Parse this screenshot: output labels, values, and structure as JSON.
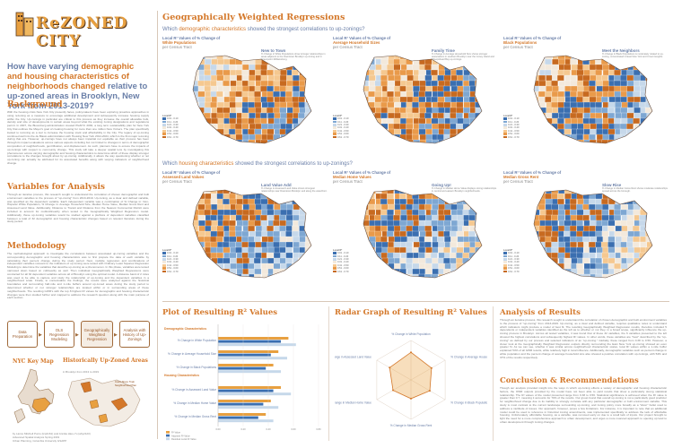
{
  "logo": {
    "text": "ReZONED CITY",
    "subtitle": ""
  },
  "title": {
    "prefix": "How have varying",
    "highlight": "demographic and housing characteristics of neighborhoods changed",
    "suffix": "relative to up-zoned areas in Brooklyn, New York from 2013-2019?"
  },
  "sections": {
    "background": {
      "heading": "Background",
      "text": "With the housing crisis New York City presently faces, policymakers have been exploring proactive approaches in using rezoning as a measure to encourage additional development and subsequently increase housing supply within the City. Up-zonings in particular are critical to this process as they increase the overall allowable bulk, density and size of developments in certain areas beyond what the existing zoning designations and regulations permit. In 2007, the Bloomberg administration created PlaNYC 2030, a long term sustainability plan for New York City that outlines the Mayor's goal of creating housing for more than one million New Yorkers. The plan specifically looked to rezoning as a tool to increase the housing stock and affordability in the City. The legacy of up-zoning continued well into the de Blasio administration with Housing New York 2014-2024, which is the first major rezoning during that era. However, up-zonings have not always been impartial nor equitable as their process has been through its impact evaluations across various aspects including but not limited to changes in terms of demographic composition of neighborhoods, gentrification, and displacement. As such, planners have to ensure the impacts of up-zonings with respect to community change. This study will take a deeper spatial lens by investigating this phenomenon across varying demographic and housing characteristics to determine which of these display stronger correlations to the changes brought about by up-zoning. Additionally, it allows the way questioning whether or not up-zoning can actually be attributed for its associated benefits along with varying indicators of neighborhood change."
    },
    "variables": {
      "heading": "Variables for Analysis",
      "text": "Through an iterative process, this research sought to understand the correlation of chosen demographic and built environment variables to the process of \"up-zoning\" from 2013-2019. Up-zoning, as a clear and defined variable, was specified as the dependent variable. Each independent variable was a combination of % Change in: Non-Hispanic White Population, % Change in: Average Household Size, Median Home Value, Median Gross Rent and Assessed Land Value. Additionally, Distance to Transit and Distance from the Nearest Commercial District were included to account for multicollinearity when tested in the Geographically Weighted Regression model. Additionally, these up-zoning variables would be studied against a plethora of dependent variables classified between a total of 32 demographic and housing characteristic changes based on relevant literature during the study period."
    },
    "methodology": {
      "heading": "Methodology",
      "text": "The methodological approach to investigate the correlations between associated up-zoning variables and the corresponding demographic and housing characteristics was to first prepare the data of each variable by calculating their percent change during the study period. Next, multiple regression and combinations of independent variables relevant to the indicators of up-zoning were tested with Ordinary Least Squares Regression Modeling to determine the variables that describe up-zoning as a phenomenon. In this phase, variables were tested narrowed down based on collinearity as well. Then individual Geographically Weighted Regressions were conducted for all 32 dependent variables across all of Brooklyn using the optimal model. A distance band of 2 miles was used to be able to capture and study the relationship of up-zoning and the dependent variables in a neighborhood scale. Finally, to contextualize the findings, the results were analyzed against the historical boundaries and surrounding half-mile and 1-mile buffers around up-zoned areas during the study period to determined whether or not stronger relationships are located within or in surrounding areas of these neighborhoods. The resulting GWR's with the top 8 highest R² values for demographic and housing characteristic changes were then studied further and mapped to address the research question along with the main purpose of each section."
    }
  },
  "flow_steps": [
    "Data Preparation",
    "OLS Regression Modeling",
    "Geographically Weighted Regression",
    "Analysis with History of Up-Zonings"
  ],
  "nyc_key_map": {
    "heading": "NYC Key Map"
  },
  "historical_map": {
    "heading": "Historically Up-Zoned Areas",
    "subtitle": "in Brooklyn from 2013 to 2019",
    "label": "Court Shore Train Neighborhood Plan"
  },
  "credits": {
    "line1": "by Lance Mitchell Purcu (lcp2161) and Annika Hieu-Yu (ahy2123)",
    "line2": "Advanced Spatial Analysis Spring 2019",
    "line3": "Urban Planning, Columbia University GSAPP"
  },
  "gwr": {
    "heading": "Geographically Weighted Regressions",
    "demo_question": {
      "prefix": "Which",
      "highlight": "demographic characteristics",
      "suffix": "showed the strongest correlations to up-zonings?"
    },
    "housing_question": {
      "prefix": "Which",
      "highlight": "housing characteristics",
      "suffix": "showed the strongest correlations to up-zonings?"
    },
    "demo_maps": [
      {
        "title": "Local R² Values of % Change of",
        "hl": "White Populations",
        "sub": "per Census Tract",
        "note_h": "New to Town",
        "note": "% Change in White Populations show stronger relationships in areas adjacent to the Downtown Brooklyn up-zoning and in Greenpoint-Williamsburg."
      },
      {
        "title": "Local R² Values of % Change of",
        "hl": "Average Household Sizes",
        "sub": "per Census Tract",
        "note_h": "Family Time",
        "note": "% Change in Average Household Size shows stronger associations in southern Brooklyn near the Coney Island and Sheepshead Bay up-zonings."
      },
      {
        "title": "Local R² Values of % Change of",
        "hl": "Black Populations",
        "sub": "per Census Tract",
        "note_h": "Meet the Neighbors",
        "note": "% Change in Black Populations is moderately related to up-zoning, concentrated in East New York and Crown Heights."
      }
    ],
    "housing_maps": [
      {
        "title": "Local R² Values of % Change of",
        "hl": "Assessed Land Values",
        "sub": "per Census Tract",
        "note_h": "Land Value Add",
        "note": "% Change in Assessed Land Value shows strongest relationships near Downtown Brooklyn and along the waterfront."
      },
      {
        "title": "Local R² Values of % Change of",
        "hl": "Median Home Values",
        "sub": "per Census Tract",
        "note_h": "Going Up!",
        "note": "% Change in Median Home Value displays strong relationships in central and eastern Brooklyn neighborhoods."
      },
      {
        "title": "Local R² Values of % Change of",
        "hl": "Median Gross Rent",
        "sub": "per Census Tract",
        "note_h": "Slow Rise",
        "note": "% Change in Median Gross Rent shows moderate relationships spread across the borough."
      }
    ],
    "legend_title": "Local R²",
    "legend_items": [
      "0.01 - 0.10",
      "0.11 - 0.20",
      "0.21 - 0.30",
      "0.31 - 0.40",
      "0.41 - 0.50",
      "0.51 - 0.60",
      "0.61 - 0.70"
    ],
    "legend_colors": [
      "#3b6fb0",
      "#7ea7d2",
      "#c6d8ea",
      "#f3e9dc",
      "#f5c890",
      "#e99a4a",
      "#c76a20"
    ]
  },
  "plot_r2": {
    "heading": "Plot of Resulting R² Values",
    "cat_demo": "Demographic Characteristics",
    "cat_housing": "Housing Characteristics",
    "legend": [
      "R² Value",
      "Adjusted R² Value",
      "Residual Local R² Value"
    ]
  },
  "radar": {
    "heading": "Radar Graph of Resulting R² Values",
    "labels": [
      "% Change in White Population",
      "% Change in Average Household Size",
      "% Change in Black Populations",
      "% Change in Median Gross Rent",
      "% Change in Median Home Value",
      "% Change in Assessed Land Value"
    ]
  },
  "analysis": {
    "heading": "Analysis of Results",
    "text": "Through an iterative process, this research sought to understand the correlation of chosen demographic and built environment variables to the process of \"up-zoning\" from 2013-2019. Up-zoning, as a clear and defined variable, requires qualitative notes to understand which indicators might produce a model of best fit. The resulting Geographically Weighted Regression results, therefore included 5 dependents or independent variables identified as the left as to whether or not they, in a broad scope, significantly influence the up-zoning process in Brooklyn. Across all tested variables, it was found that of these 32 variables, the 6 variables presented to the left showed the highest correlations and subsequently highest R² values. In other words, these variables are \"best\" described by the \"up-zoning\" as defined by our process and selected indicators of an \"up-zoning.\" Globally, these ranged from 0.38 to 0.56. However, a closer look at the Geographically Weighted Regression outputs directly surrounding the East New York up-zoning showed an even greater fit. As we can see, whether it was similar across neighborhood characteristic scales, local R² values within a 1-mile buffer explained 54% of all GWR results, while relatively high in local influence. Additionally, demographic variables such as percent change in white population and the percent change of average household size also showed a positive correlation with up-zonings, with 54% and 37% of the results respectively."
  },
  "conclusion": {
    "heading": "Conclusion & Recommendations",
    "text": "Though our analysis provided insight into the ways in which up-zoning effects a variety of demographic and housing characteristic factors, the OWR outputs provided by the model have not been able to yield results that show a particularly strong statistical relationship. The R² values of the model presented range from 0.38 to 0.56. Statistical significance is achieved when the R² value is greater than 0.7, meaning it accounts for 70% of the results. Our group found that overall up-zoning is not a particularly good predictor for neighborhood change due to its inability to strongly correlate with any particular demographic or built environment variable. This study is most contrast to the current landscape surrounding up-zoning, and zoning policy more broadly as a \"silver\" bullet used to address a multitude of issues. Our approach, however, poses a few limitations. For instance, it is important to note that an additional model could be used to reference in historical zoning amendments, was implemented specifically to address the lack of affordable housing. Unfortunately, affordable housing, as a variable, was removed early on due to a small lack of inputs. Our project brought to light the need for a more comprehensive approach to urban development, and urges a more nuanced approach to opening up land to urban development through zoning changes."
  },
  "chart_data": [
    {
      "type": "bar",
      "title": "Plot of Resulting R² Values",
      "categories": [
        "% Change in White Population",
        "% Change in Average Household Size",
        "% Change in Black Populations",
        "% Change in Assessed Land Value",
        "% Change in Median Home Value",
        "% Change in Median Gross Rent"
      ],
      "series": [
        {
          "name": "R² Value",
          "values": [
            0.56,
            0.48,
            0.44,
            0.5,
            0.42,
            0.38
          ]
        },
        {
          "name": "Adjusted R² Value",
          "values": [
            0.5,
            0.42,
            0.38,
            0.44,
            0.36,
            0.32
          ]
        },
        {
          "name": "Residual Local R² Value",
          "values": [
            0.62,
            0.55,
            0.5,
            0.58,
            0.48,
            0.44
          ]
        }
      ],
      "ylim": [
        0,
        0.8
      ],
      "ticks": [
        "0.00",
        "0.20",
        "0.40",
        "0.60",
        "0.80"
      ]
    },
    {
      "type": "radar",
      "title": "Radar Graph of Resulting R² Values",
      "categories": [
        "% Change in White Population",
        "% Change in Average Household Size",
        "% Change in Black Populations",
        "% Change in Median Gross Rent",
        "% Change in Median Home Value",
        "% Change in Assessed Land Value"
      ],
      "series": [
        {
          "name": "R² Value",
          "values": [
            0.56,
            0.48,
            0.44,
            0.38,
            0.42,
            0.5
          ]
        }
      ],
      "rlim": [
        0,
        0.8
      ]
    }
  ]
}
